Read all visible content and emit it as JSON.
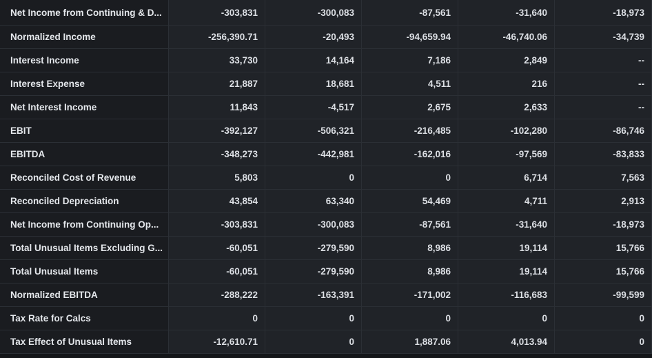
{
  "rows": [
    {
      "label": "Net Income from Continuing & D...",
      "values": [
        "-303,831",
        "-300,083",
        "-87,561",
        "-31,640",
        "-18,973"
      ]
    },
    {
      "label": "Normalized Income",
      "values": [
        "-256,390.71",
        "-20,493",
        "-94,659.94",
        "-46,740.06",
        "-34,739"
      ]
    },
    {
      "label": "Interest Income",
      "values": [
        "33,730",
        "14,164",
        "7,186",
        "2,849",
        "--"
      ]
    },
    {
      "label": "Interest Expense",
      "values": [
        "21,887",
        "18,681",
        "4,511",
        "216",
        "--"
      ]
    },
    {
      "label": "Net Interest Income",
      "values": [
        "11,843",
        "-4,517",
        "2,675",
        "2,633",
        "--"
      ]
    },
    {
      "label": "EBIT",
      "values": [
        "-392,127",
        "-506,321",
        "-216,485",
        "-102,280",
        "-86,746"
      ]
    },
    {
      "label": "EBITDA",
      "values": [
        "-348,273",
        "-442,981",
        "-162,016",
        "-97,569",
        "-83,833"
      ]
    },
    {
      "label": "Reconciled Cost of Revenue",
      "values": [
        "5,803",
        "0",
        "0",
        "6,714",
        "7,563"
      ]
    },
    {
      "label": "Reconciled Depreciation",
      "values": [
        "43,854",
        "63,340",
        "54,469",
        "4,711",
        "2,913"
      ]
    },
    {
      "label": "Net Income from Continuing Op...",
      "values": [
        "-303,831",
        "-300,083",
        "-87,561",
        "-31,640",
        "-18,973"
      ]
    },
    {
      "label": "Total Unusual Items Excluding G...",
      "values": [
        "-60,051",
        "-279,590",
        "8,986",
        "19,114",
        "15,766"
      ]
    },
    {
      "label": "Total Unusual Items",
      "values": [
        "-60,051",
        "-279,590",
        "8,986",
        "19,114",
        "15,766"
      ]
    },
    {
      "label": "Normalized EBITDA",
      "values": [
        "-288,222",
        "-163,391",
        "-171,002",
        "-116,683",
        "-99,599"
      ]
    },
    {
      "label": "Tax Rate for Calcs",
      "values": [
        "0",
        "0",
        "0",
        "0",
        "0"
      ]
    },
    {
      "label": "Tax Effect of Unusual Items",
      "values": [
        "-12,610.71",
        "0",
        "1,887.06",
        "4,013.94",
        "0"
      ]
    }
  ]
}
